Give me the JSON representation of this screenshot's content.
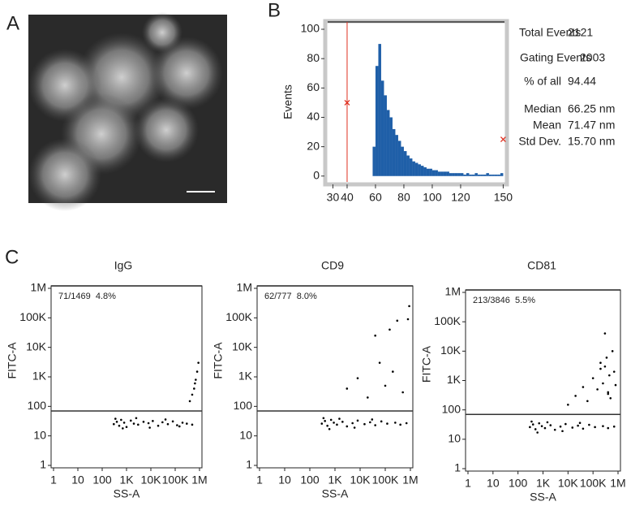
{
  "panel_labels": [
    "A",
    "B",
    "C"
  ],
  "stats": [
    {
      "label": "Total Events",
      "value": "2121"
    },
    {
      "label": "Gating Events",
      "value": "2003"
    },
    {
      "label": "% of all",
      "value": "94.44"
    },
    {
      "label": "Median",
      "value": "66.25 nm"
    },
    {
      "label": "Mean",
      "value": "71.47 nm"
    },
    {
      "label": "Std Dev.",
      "value": "15.70 nm"
    }
  ],
  "chart_data": [
    {
      "type": "histogram",
      "y_label": "Events",
      "color": "#1f5fa8",
      "bins": [
        58,
        60,
        62,
        64,
        66,
        68,
        70,
        72,
        74,
        76,
        78,
        80,
        82,
        84,
        86,
        88,
        90,
        92,
        94,
        96,
        98,
        100,
        102,
        104,
        106,
        108,
        110,
        112,
        114,
        116,
        118,
        120,
        122,
        124,
        126,
        128,
        130,
        132,
        134,
        136,
        138,
        140,
        142,
        144,
        146,
        148,
        150
      ],
      "values": [
        20,
        75,
        90,
        65,
        55,
        45,
        40,
        32,
        28,
        24,
        20,
        17,
        14,
        12,
        10,
        9,
        8,
        7,
        6,
        5,
        5,
        4,
        4,
        3,
        3,
        3,
        3,
        2,
        2,
        2,
        2,
        2,
        1,
        2,
        1,
        1,
        2,
        1,
        1,
        1,
        2,
        1,
        1,
        1,
        1,
        2
      ],
      "xlim": [
        26.3,
        150.9
      ],
      "xticks": [
        30,
        40,
        60,
        80,
        100,
        120,
        150
      ],
      "ylim": [
        -4,
        105
      ],
      "yticks": [
        0,
        20,
        40,
        60,
        80,
        100
      ],
      "gate": 40,
      "gate_color": "#e03020",
      "markers": [
        {
          "x": 40,
          "y": 50
        },
        {
          "x": 150,
          "y": 25
        }
      ]
    },
    {
      "type": "scatter",
      "title": "IgG",
      "x_label": "SS-A",
      "y_label": "FITC-A",
      "annotation": "71/1469  4.8%",
      "color": "#000000",
      "xscale": "log",
      "yscale": "log",
      "xlim": [
        1,
        1000000
      ],
      "ylim": [
        1,
        1000000
      ],
      "threshold": 70,
      "xticks": [
        1,
        10,
        100,
        {
          "value": 1000,
          "label": "1K"
        },
        {
          "value": 10000,
          "label": "10K"
        },
        {
          "value": 100000,
          "label": "100K"
        },
        {
          "value": 1000000,
          "label": "1M"
        }
      ],
      "yticks": [
        1,
        10,
        100,
        {
          "value": 1000,
          "label": "1K"
        },
        {
          "value": 10000,
          "label": "10K"
        },
        {
          "value": 100000,
          "label": "100K"
        },
        {
          "value": 1000000,
          "label": "1M"
        }
      ],
      "x": [
        300,
        400,
        500,
        600,
        800,
        1000,
        1500,
        2000,
        3000,
        5000,
        8000,
        12000,
        20000,
        30000,
        50000,
        80000,
        120000,
        200000,
        300000,
        500000,
        350,
        700,
        2500,
        9000,
        40000,
        150000,
        400000,
        600000,
        700000,
        800000,
        900000,
        500000,
        650000
      ],
      "y": [
        25,
        30,
        22,
        35,
        28,
        20,
        33,
        26,
        24,
        30,
        27,
        32,
        22,
        29,
        25,
        31,
        23,
        28,
        26,
        24,
        38,
        18,
        40,
        19,
        36,
        21,
        150,
        400,
        800,
        1500,
        3000,
        250,
        600
      ]
    },
    {
      "type": "scatter",
      "title": "CD9",
      "x_label": "SS-A",
      "y_label": "FITC-A",
      "annotation": "62/777  8.0%",
      "color": "#000000",
      "xscale": "log",
      "yscale": "log",
      "xlim": [
        1,
        1000000
      ],
      "ylim": [
        1,
        1000000
      ],
      "threshold": 70,
      "xticks": [
        1,
        10,
        100,
        {
          "value": 1000,
          "label": "1K"
        },
        {
          "value": 10000,
          "label": "10K"
        },
        {
          "value": 100000,
          "label": "100K"
        },
        {
          "value": 1000000,
          "label": "1M"
        }
      ],
      "yticks": [
        1,
        10,
        100,
        {
          "value": 1000,
          "label": "1K"
        },
        {
          "value": 10000,
          "label": "10K"
        },
        {
          "value": 100000,
          "label": "100K"
        },
        {
          "value": 1000000,
          "label": "1M"
        }
      ],
      "x": [
        300,
        400,
        500,
        700,
        900,
        1200,
        2000,
        3000,
        5000,
        8000,
        15000,
        25000,
        40000,
        70000,
        120000,
        250000,
        400000,
        700000,
        350,
        600,
        1500,
        6000,
        30000,
        3000,
        8000,
        20000,
        40000,
        60000,
        100000,
        150000,
        200000,
        300000,
        500000,
        800000,
        900000
      ],
      "y": [
        26,
        32,
        22,
        35,
        28,
        24,
        30,
        21,
        27,
        33,
        25,
        29,
        23,
        31,
        26,
        28,
        24,
        27,
        40,
        17,
        38,
        19,
        36,
        400,
        900,
        200,
        25000,
        3000,
        500,
        40000,
        1500,
        80000,
        300,
        90000,
        250000
      ]
    },
    {
      "type": "scatter",
      "title": "CD81",
      "x_label": "SS-A",
      "y_label": "FITC-A",
      "annotation": "213/3846  5.5%",
      "color": "#000000",
      "xscale": "log",
      "yscale": "log",
      "xlim": [
        1,
        1000000
      ],
      "ylim": [
        1,
        1000000
      ],
      "threshold": 70,
      "xticks": [
        1,
        10,
        100,
        {
          "value": 1000,
          "label": "1K"
        },
        {
          "value": 10000,
          "label": "10K"
        },
        {
          "value": 100000,
          "label": "100K"
        },
        {
          "value": 1000000,
          "label": "1M"
        }
      ],
      "yticks": [
        1,
        10,
        100,
        {
          "value": 1000,
          "label": "1K"
        },
        {
          "value": 10000,
          "label": "10K"
        },
        {
          "value": 100000,
          "label": "100K"
        },
        {
          "value": 1000000,
          "label": "1M"
        }
      ],
      "x": [
        300,
        400,
        500,
        700,
        900,
        1200,
        2000,
        3000,
        5000,
        8000,
        15000,
        25000,
        40000,
        70000,
        120000,
        250000,
        400000,
        700000,
        350,
        600,
        1500,
        6000,
        30000,
        10000,
        20000,
        40000,
        60000,
        100000,
        150000,
        200000,
        250000,
        300000,
        350000,
        400000,
        450000,
        500000,
        600000,
        700000,
        800000,
        300000,
        200000,
        400000
      ],
      "y": [
        26,
        32,
        22,
        35,
        28,
        24,
        30,
        21,
        27,
        33,
        25,
        29,
        23,
        31,
        26,
        28,
        24,
        27,
        40,
        17,
        38,
        19,
        36,
        150,
        300,
        600,
        200,
        1200,
        500,
        2500,
        800,
        3000,
        6000,
        400,
        1500,
        250,
        10000,
        2000,
        700,
        40000,
        4000,
        350
      ]
    }
  ]
}
